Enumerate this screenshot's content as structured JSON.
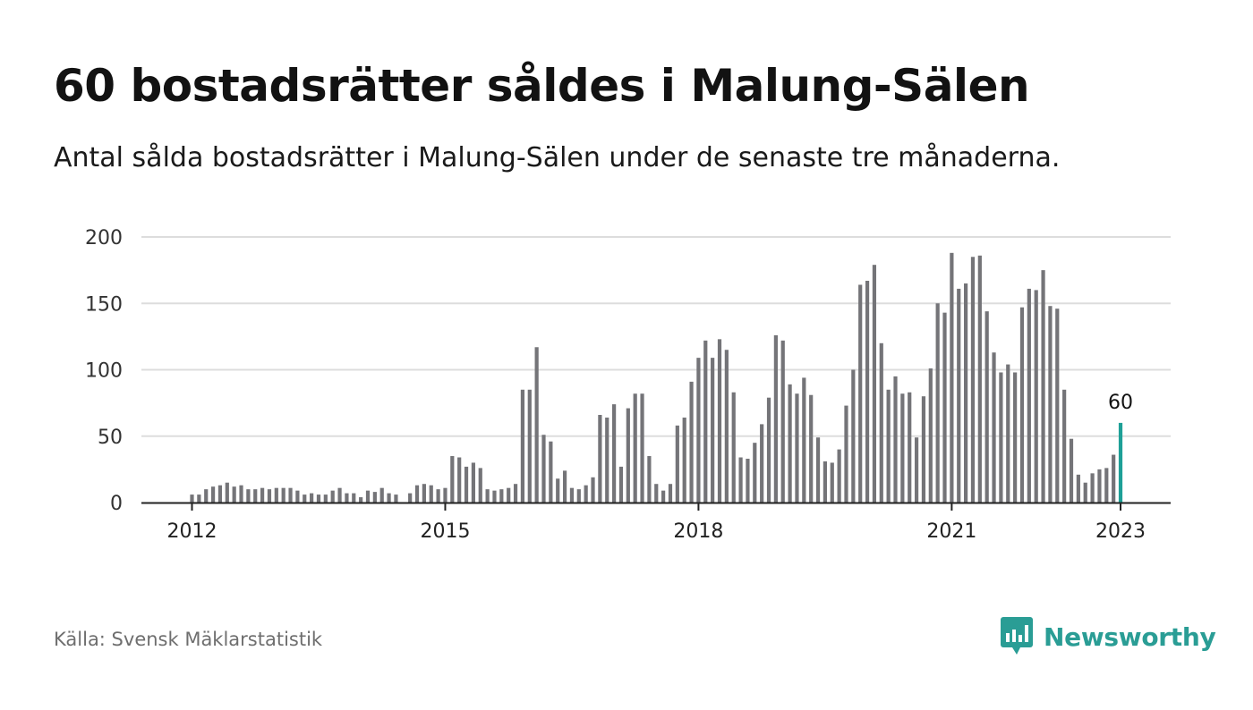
{
  "header": {
    "title": "60 bostadsrätter såldes i Malung-Sälen",
    "subtitle": "Antal sålda bostadsrätter i Malung-Sälen under de senaste tre månaderna."
  },
  "footer": {
    "source": "Källa: Svensk Mäklarstatistik",
    "brand": "Newsworthy",
    "brand_icon": "bar-chart-speech-bubble-icon"
  },
  "colors": {
    "bar": "#747478",
    "highlight": "#1ea097",
    "grid": "#dddddd",
    "axis": "#222222",
    "brand": "#2a9d95"
  },
  "chart_data": {
    "type": "bar",
    "x_start": "2012-01",
    "x_end": "2023-01",
    "x_unit": "month",
    "ylim": [
      0,
      200
    ],
    "yticks": [
      0,
      50,
      100,
      150,
      200
    ],
    "xticks": [
      "2012",
      "2015",
      "2018",
      "2021",
      "2023"
    ],
    "grid": true,
    "highlight_label": "60",
    "values": [
      6,
      6,
      10,
      12,
      13,
      15,
      12,
      13,
      10,
      10,
      11,
      10,
      11,
      11,
      11,
      9,
      6,
      7,
      6,
      6,
      9,
      11,
      7,
      7,
      4,
      9,
      8,
      11,
      7,
      6,
      0,
      7,
      13,
      14,
      13,
      10,
      11,
      35,
      34,
      27,
      30,
      26,
      10,
      9,
      10,
      11,
      14,
      85,
      85,
      117,
      51,
      46,
      18,
      24,
      11,
      10,
      13,
      19,
      66,
      64,
      74,
      27,
      71,
      82,
      82,
      35,
      14,
      9,
      14,
      58,
      64,
      91,
      109,
      122,
      109,
      123,
      115,
      83,
      34,
      33,
      45,
      59,
      79,
      126,
      122,
      89,
      82,
      94,
      81,
      49,
      31,
      30,
      40,
      73,
      100,
      164,
      167,
      179,
      120,
      85,
      95,
      82,
      83,
      49,
      80,
      101,
      150,
      143,
      188,
      161,
      165,
      185,
      186,
      144,
      113,
      98,
      104,
      98,
      147,
      161,
      160,
      175,
      148,
      146,
      85,
      48,
      21,
      15,
      22,
      25,
      26,
      36,
      60
    ]
  }
}
